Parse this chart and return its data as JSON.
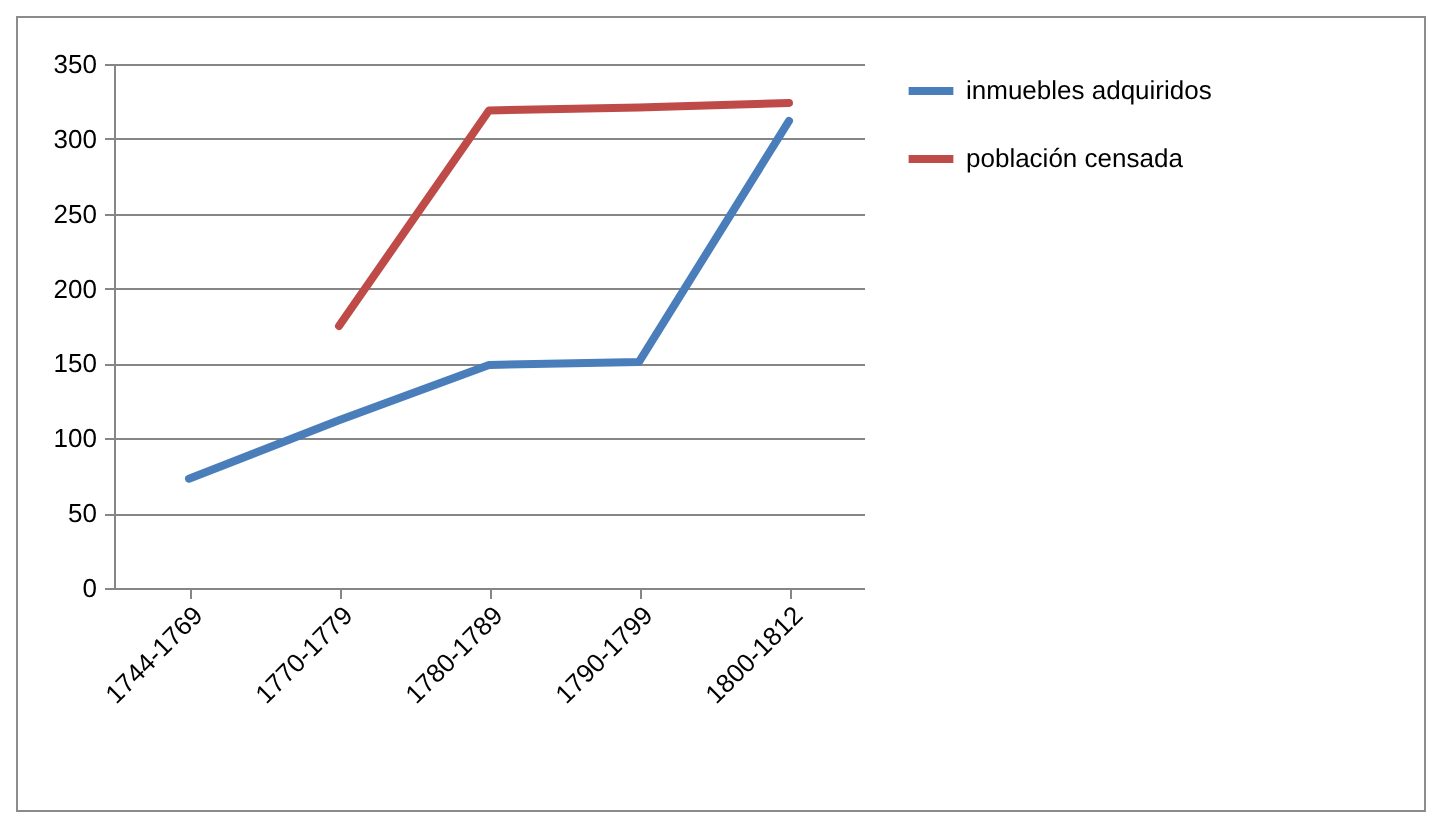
{
  "chart_data": {
    "type": "line",
    "categories": [
      "1744-1769",
      "1770-1779",
      "1780-1789",
      "1790-1799",
      "1800-1812"
    ],
    "series": [
      {
        "name": "inmuebles adquiridos",
        "color": "#4a7ebb",
        "values": [
          73,
          112,
          149,
          151,
          312
        ]
      },
      {
        "name": "población censada",
        "color": "#be4b48",
        "values": [
          null,
          175,
          319,
          321,
          324
        ]
      }
    ],
    "ylim": [
      0,
      350
    ],
    "yticks": [
      0,
      50,
      100,
      150,
      200,
      250,
      300,
      350
    ],
    "grid": "y",
    "legend": "right",
    "marker": "none",
    "line_style": "solid"
  }
}
